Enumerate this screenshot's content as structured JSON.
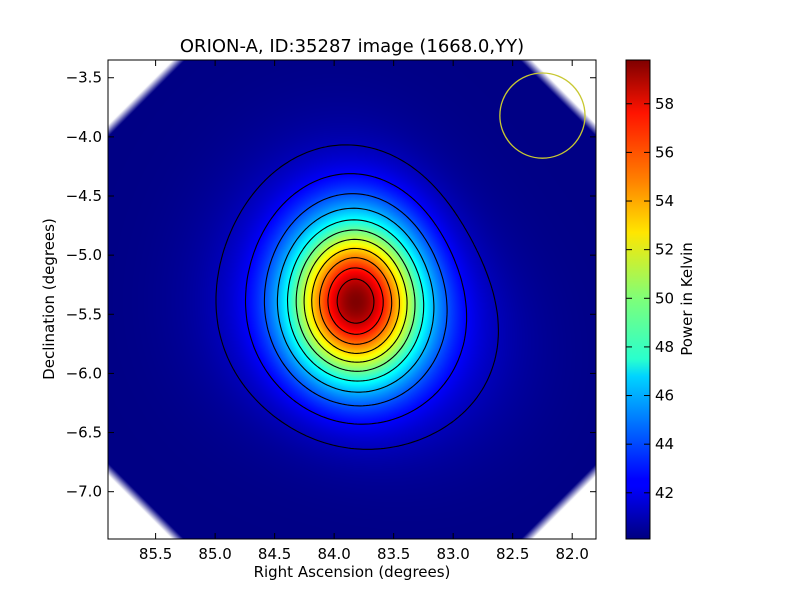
{
  "chart_data": {
    "type": "heatmap",
    "title": "ORION-A, ID:35287 image (1668.0,YY)",
    "xlabel": "Right Ascension (degrees)",
    "ylabel": "Declination (degrees)",
    "colorbar_label": "Power in Kelvin",
    "xlim": [
      85.9,
      81.8
    ],
    "ylim": [
      -7.4,
      -3.35
    ],
    "x_ticks": [
      "85.5",
      "85.0",
      "84.5",
      "84.0",
      "83.5",
      "83.0",
      "82.5",
      "82.0"
    ],
    "x_tick_values": [
      85.5,
      85.0,
      84.5,
      84.0,
      83.5,
      83.0,
      82.5,
      82.0
    ],
    "y_ticks": [
      "−3.5",
      "−4.0",
      "−4.5",
      "−5.0",
      "−5.5",
      "−6.0",
      "−6.5",
      "−7.0"
    ],
    "y_tick_values": [
      -3.5,
      -4.0,
      -4.5,
      -5.0,
      -5.5,
      -6.0,
      -6.5,
      -7.0
    ],
    "colorbar_ticks": [
      "42",
      "44",
      "46",
      "48",
      "50",
      "52",
      "54",
      "56",
      "58"
    ],
    "colorbar_tick_values": [
      42,
      44,
      46,
      48,
      50,
      52,
      54,
      56,
      58
    ],
    "colorbar_range": [
      40.1,
      59.8
    ],
    "colormap": "jet",
    "source_peak": {
      "ra": 83.82,
      "dec": -5.39,
      "value": 59.8
    },
    "background_value": 40.2,
    "contour_levels": [
      41.2,
      42.5,
      44.2,
      46.0,
      47.8,
      49.6,
      51.4,
      53.2,
      55.0,
      56.8,
      58.4
    ],
    "beam_circle": {
      "ra": 82.25,
      "dec": -3.82,
      "radius_deg": 0.36,
      "color": "#c8c832"
    },
    "grid": false
  }
}
